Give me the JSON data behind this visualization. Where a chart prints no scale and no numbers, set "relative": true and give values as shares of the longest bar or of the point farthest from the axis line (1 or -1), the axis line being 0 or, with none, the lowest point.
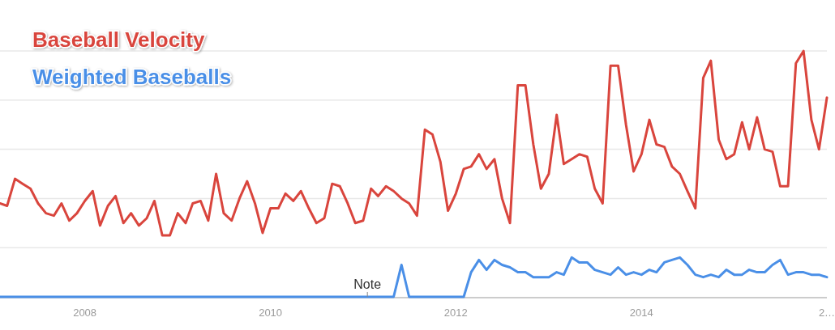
{
  "chart_data": {
    "type": "line",
    "relative": true,
    "grid": "y",
    "legend": "top left",
    "line_style": "solid",
    "x": [
      "2007-02",
      "2007-03",
      "2007-04",
      "2007-05",
      "2007-06",
      "2007-07",
      "2007-08",
      "2007-09",
      "2007-10",
      "2007-11",
      "2007-12",
      "2008-01",
      "2008-02",
      "2008-03",
      "2008-04",
      "2008-05",
      "2008-06",
      "2008-07",
      "2008-08",
      "2008-09",
      "2008-10",
      "2008-11",
      "2008-12",
      "2009-01",
      "2009-02",
      "2009-03",
      "2009-04",
      "2009-05",
      "2009-06",
      "2009-07",
      "2009-08",
      "2009-09",
      "2009-10",
      "2009-11",
      "2009-12",
      "2010-01",
      "2010-02",
      "2010-03",
      "2010-04",
      "2010-05",
      "2010-06",
      "2010-07",
      "2010-08",
      "2010-09",
      "2010-10",
      "2010-11",
      "2010-12",
      "2011-01",
      "2011-02",
      "2011-03",
      "2011-04",
      "2011-05",
      "2011-06",
      "2011-07",
      "2011-08",
      "2011-09",
      "2011-10",
      "2011-11",
      "2011-12",
      "2012-01",
      "2012-02",
      "2012-03",
      "2012-04",
      "2012-05",
      "2012-06",
      "2012-07",
      "2012-08",
      "2012-09",
      "2012-10",
      "2012-11",
      "2012-12",
      "2013-01",
      "2013-02",
      "2013-03",
      "2013-04",
      "2013-05",
      "2013-06",
      "2013-07",
      "2013-08",
      "2013-09",
      "2013-10",
      "2013-11",
      "2013-12",
      "2014-01",
      "2014-02",
      "2014-03",
      "2014-04",
      "2014-05",
      "2014-06",
      "2014-07",
      "2014-08",
      "2014-09",
      "2014-10",
      "2014-11",
      "2014-12",
      "2015-01",
      "2015-02",
      "2015-03",
      "2015-04",
      "2015-05",
      "2015-06",
      "2015-07",
      "2015-08",
      "2015-09",
      "2015-10",
      "2015-11",
      "2015-12",
      "2016-01"
    ],
    "xlim": [
      "2007-02",
      "2016-01"
    ],
    "xticks": [
      {
        "value": "2008-01",
        "label": "2008"
      },
      {
        "value": "2010-01",
        "label": "2010"
      },
      {
        "value": "2012-01",
        "label": "2012"
      },
      {
        "value": "2014-01",
        "label": "2014"
      },
      {
        "value": "2016-01",
        "label": "2…"
      }
    ],
    "series": [
      {
        "name": "Baseball Velocity",
        "color": "#d9453d",
        "values": [
          0.38,
          0.37,
          0.48,
          0.46,
          0.44,
          0.38,
          0.34,
          0.33,
          0.38,
          0.31,
          0.34,
          0.39,
          0.43,
          0.29,
          0.37,
          0.41,
          0.3,
          0.34,
          0.29,
          0.32,
          0.39,
          0.25,
          0.25,
          0.34,
          0.3,
          0.38,
          0.39,
          0.31,
          0.5,
          0.34,
          0.31,
          0.4,
          0.47,
          0.38,
          0.26,
          0.36,
          0.36,
          0.42,
          0.39,
          0.43,
          0.36,
          0.3,
          0.32,
          0.46,
          0.45,
          0.38,
          0.3,
          0.31,
          0.44,
          0.41,
          0.45,
          0.43,
          0.4,
          0.38,
          0.33,
          0.68,
          0.66,
          0.55,
          0.35,
          0.42,
          0.52,
          0.53,
          0.58,
          0.52,
          0.56,
          0.4,
          0.3,
          0.86,
          0.86,
          0.62,
          0.44,
          0.5,
          0.74,
          0.54,
          0.56,
          0.58,
          0.57,
          0.44,
          0.38,
          0.94,
          0.94,
          0.7,
          0.51,
          0.58,
          0.72,
          0.62,
          0.61,
          0.53,
          0.5,
          0.43,
          0.36,
          0.89,
          0.96,
          0.64,
          0.56,
          0.58,
          0.71,
          0.6,
          0.73,
          0.6,
          0.59,
          0.45,
          0.45,
          0.95,
          1,
          0.72,
          0.6,
          0.81
        ]
      },
      {
        "name": "Weighted Baseballs",
        "color": "#4a8fe7",
        "values": [
          0,
          0,
          0,
          0,
          0,
          0,
          0,
          0,
          0,
          0,
          0,
          0,
          0,
          0,
          0,
          0,
          0,
          0,
          0,
          0,
          0,
          0,
          0,
          0,
          0,
          0,
          0,
          0,
          0,
          0,
          0,
          0,
          0,
          0,
          0,
          0,
          0,
          0,
          0,
          0,
          0,
          0,
          0,
          0,
          0,
          0,
          0,
          0,
          0,
          0,
          0,
          0,
          0.13,
          0,
          0,
          0,
          0,
          0,
          0,
          0,
          0,
          0.1,
          0.15,
          0.11,
          0.15,
          0.13,
          0.12,
          0.1,
          0.1,
          0.08,
          0.08,
          0.08,
          0.1,
          0.09,
          0.16,
          0.14,
          0.14,
          0.11,
          0.1,
          0.09,
          0.12,
          0.09,
          0.1,
          0.09,
          0.11,
          0.1,
          0.14,
          0.15,
          0.16,
          0.13,
          0.09,
          0.08,
          0.09,
          0.08,
          0.11,
          0.09,
          0.09,
          0.11,
          0.1,
          0.1,
          0.13,
          0.15,
          0.09,
          0.1,
          0.1,
          0.09,
          0.09,
          0.08
        ]
      }
    ],
    "annotations": [
      "Note"
    ]
  }
}
